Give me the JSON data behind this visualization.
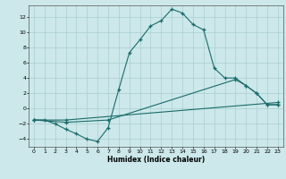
{
  "title": "",
  "xlabel": "Humidex (Indice chaleur)",
  "xlim": [
    -0.5,
    23.5
  ],
  "ylim": [
    -5,
    13.5
  ],
  "xticks": [
    0,
    1,
    2,
    3,
    4,
    5,
    6,
    7,
    8,
    9,
    10,
    11,
    12,
    13,
    14,
    15,
    16,
    17,
    18,
    19,
    20,
    21,
    22,
    23
  ],
  "yticks": [
    -4,
    -2,
    0,
    2,
    4,
    6,
    8,
    10,
    12
  ],
  "bg_color": "#cce8ea",
  "grid_color": "#aacdd0",
  "line_color": "#1a6b6b",
  "line1_x": [
    0,
    1,
    2,
    3,
    4,
    5,
    6,
    7,
    8,
    9,
    10,
    11,
    12,
    13,
    14,
    15,
    16,
    17,
    18,
    19,
    20,
    21,
    22,
    23
  ],
  "line1_y": [
    -1.5,
    -1.5,
    -2.0,
    -2.7,
    -3.3,
    -4.0,
    -4.3,
    -2.5,
    2.5,
    7.3,
    9.0,
    10.8,
    11.5,
    13.0,
    12.5,
    11.0,
    10.3,
    5.3,
    4.0,
    4.0,
    3.0,
    2.0,
    0.5,
    0.5
  ],
  "line2_x": [
    0,
    3,
    23
  ],
  "line2_y": [
    -1.5,
    -1.5,
    0.8
  ],
  "line3_x": [
    0,
    3,
    7,
    19,
    20,
    21,
    22,
    23
  ],
  "line3_y": [
    -1.5,
    -1.8,
    -1.5,
    3.8,
    3.0,
    2.0,
    0.5,
    0.5
  ]
}
